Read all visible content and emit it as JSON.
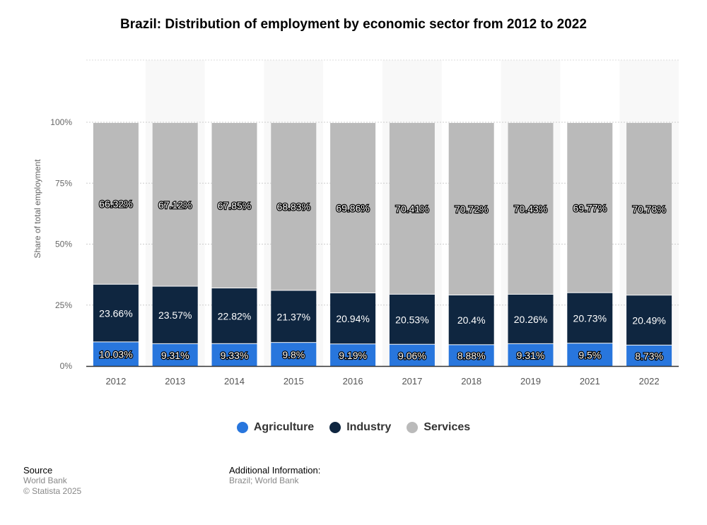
{
  "chart_data": {
    "type": "bar",
    "stacked": true,
    "title": "Brazil: Distribution of employment by economic sector from 2012 to 2022",
    "ylabel": "Share of total employment",
    "xlabel": "",
    "ylim": [
      0,
      100
    ],
    "yticks": [
      "0%",
      "25%",
      "50%",
      "75%",
      "100%"
    ],
    "grid": true,
    "legend_position": "bottom",
    "categories": [
      "2012",
      "2013",
      "2014",
      "2015",
      "2016",
      "2017",
      "2018",
      "2019",
      "2021",
      "2022"
    ],
    "series": [
      {
        "name": "Agriculture",
        "color": "#2876dd",
        "values": [
          10.03,
          9.31,
          9.33,
          9.8,
          9.19,
          9.06,
          8.88,
          9.31,
          9.5,
          8.73
        ]
      },
      {
        "name": "Industry",
        "color": "#0f2640",
        "values": [
          23.66,
          23.57,
          22.82,
          21.37,
          20.94,
          20.53,
          20.4,
          20.26,
          20.73,
          20.49
        ]
      },
      {
        "name": "Services",
        "color": "#bababa",
        "values": [
          66.32,
          67.12,
          67.85,
          68.83,
          69.86,
          70.41,
          70.72,
          70.43,
          69.77,
          70.78
        ]
      }
    ]
  },
  "footer": {
    "source_label": "Source",
    "source": "World Bank",
    "copyright": "© Statista 2025",
    "info_label": "Additional Information:",
    "info": "Brazil; World Bank"
  }
}
